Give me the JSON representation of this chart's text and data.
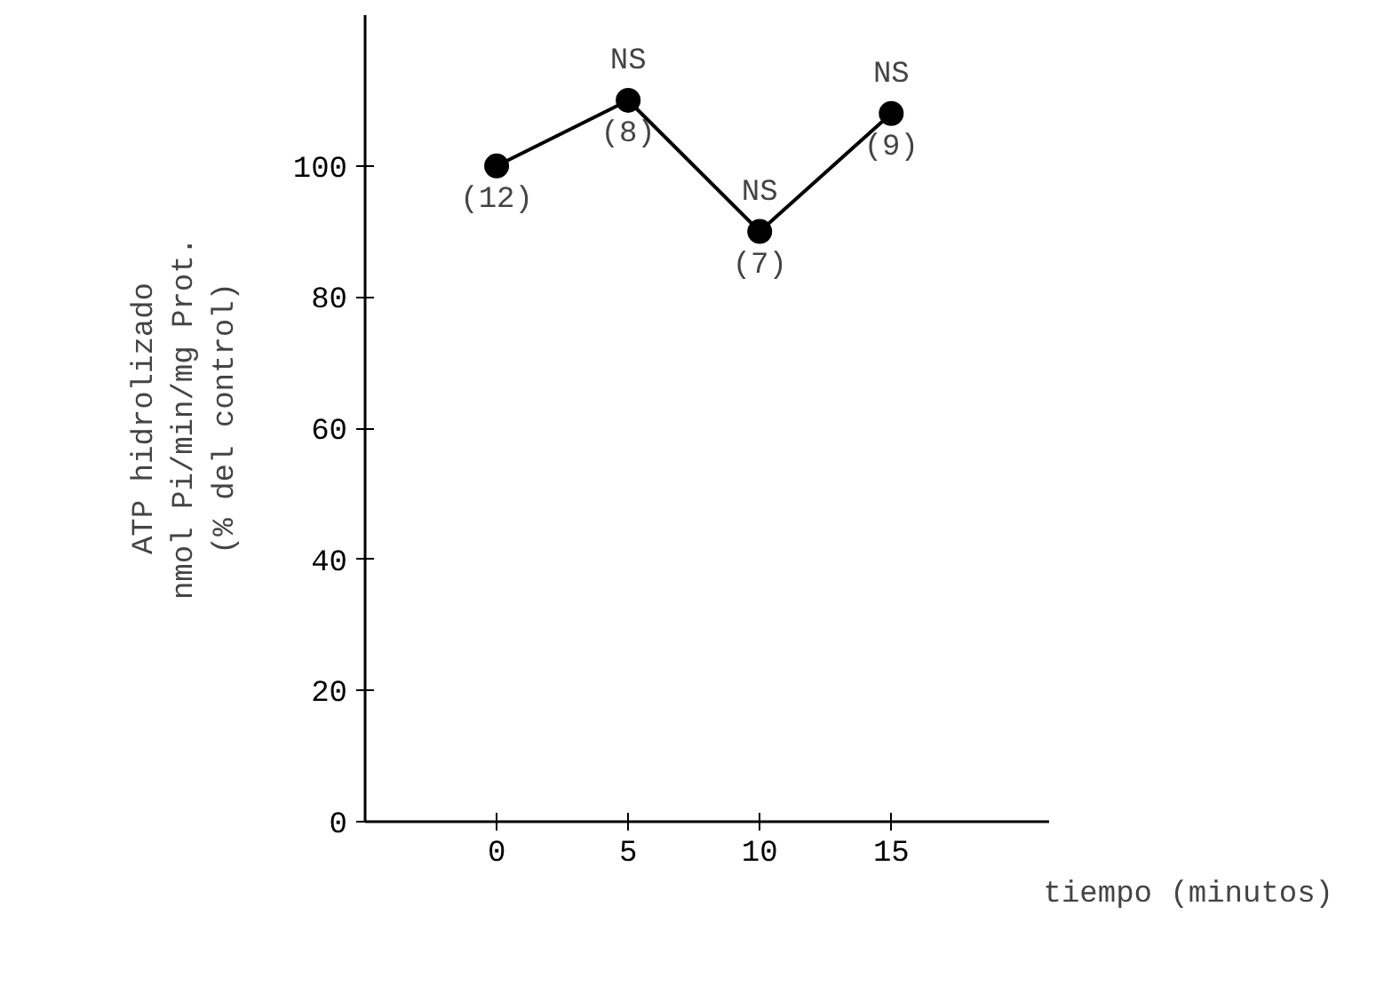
{
  "chart_data": {
    "type": "line",
    "x": [
      0,
      5,
      10,
      15
    ],
    "series": [
      {
        "color": "#000000",
        "values": [
          100,
          110,
          90,
          108
        ]
      }
    ],
    "xlim": [
      -5,
      21
    ],
    "xticks": [
      0,
      5,
      10,
      15
    ],
    "ylim": [
      0,
      123
    ],
    "yticks": [
      0,
      20,
      40,
      60,
      80,
      100
    ],
    "xlabel": "tiempo (minutos)",
    "ylabel": "ATP hidrolizado\nnmol Pi/min/mg Prot.\n(% del control)",
    "annotations": [
      {
        "text": "(12)",
        "x": 0,
        "y": 100
      },
      {
        "text": "NS",
        "x": 5,
        "y": 110
      },
      {
        "text": "(8)",
        "x": 5,
        "y": 110
      },
      {
        "text": "NS",
        "x": 10,
        "y": 90
      },
      {
        "text": "(7)",
        "x": 10,
        "y": 90
      },
      {
        "text": "NS",
        "x": 15,
        "y": 108
      },
      {
        "text": "(9)",
        "x": 15,
        "y": 108
      }
    ],
    "marker": "circle",
    "line_style": "solid",
    "grid": false
  }
}
